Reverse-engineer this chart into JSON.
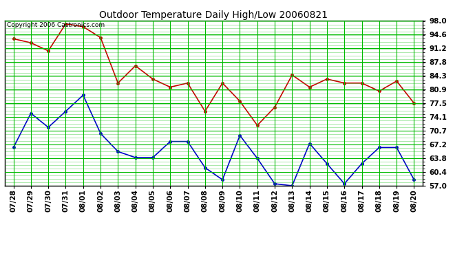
{
  "title": "Outdoor Temperature Daily High/Low 20060821",
  "copyright": "Copyright 2006 Castronics.com",
  "x_labels": [
    "07/28",
    "07/29",
    "07/30",
    "07/31",
    "08/01",
    "08/02",
    "08/03",
    "08/04",
    "08/05",
    "08/06",
    "08/07",
    "08/08",
    "08/09",
    "08/10",
    "08/11",
    "08/12",
    "08/13",
    "08/14",
    "08/15",
    "08/16",
    "08/17",
    "08/18",
    "08/19",
    "08/20"
  ],
  "high_temps": [
    93.5,
    92.5,
    90.5,
    97.2,
    96.5,
    93.8,
    82.5,
    86.8,
    83.5,
    81.5,
    82.5,
    75.5,
    82.5,
    78.0,
    72.0,
    76.5,
    84.5,
    81.5,
    83.5,
    82.5,
    82.5,
    80.5,
    83.0,
    77.5
  ],
  "low_temps": [
    66.5,
    75.0,
    71.5,
    75.5,
    79.5,
    70.0,
    65.5,
    64.0,
    64.0,
    68.0,
    68.0,
    61.5,
    58.5,
    69.5,
    63.8,
    57.5,
    57.0,
    67.5,
    62.5,
    57.5,
    62.5,
    66.5,
    66.5,
    58.5
  ],
  "high_color": "#CC0000",
  "low_color": "#0000CC",
  "bg_color": "#FFFFFF",
  "grid_color": "#00BB00",
  "title_color": "#000000",
  "copyright_color": "#000000",
  "ymin": 57.0,
  "ymax": 98.0,
  "yticks": [
    57.0,
    60.4,
    63.8,
    67.2,
    70.7,
    74.1,
    77.5,
    80.9,
    84.3,
    87.8,
    91.2,
    94.6,
    98.0
  ],
  "figwidth": 6.9,
  "figheight": 3.75,
  "dpi": 100
}
